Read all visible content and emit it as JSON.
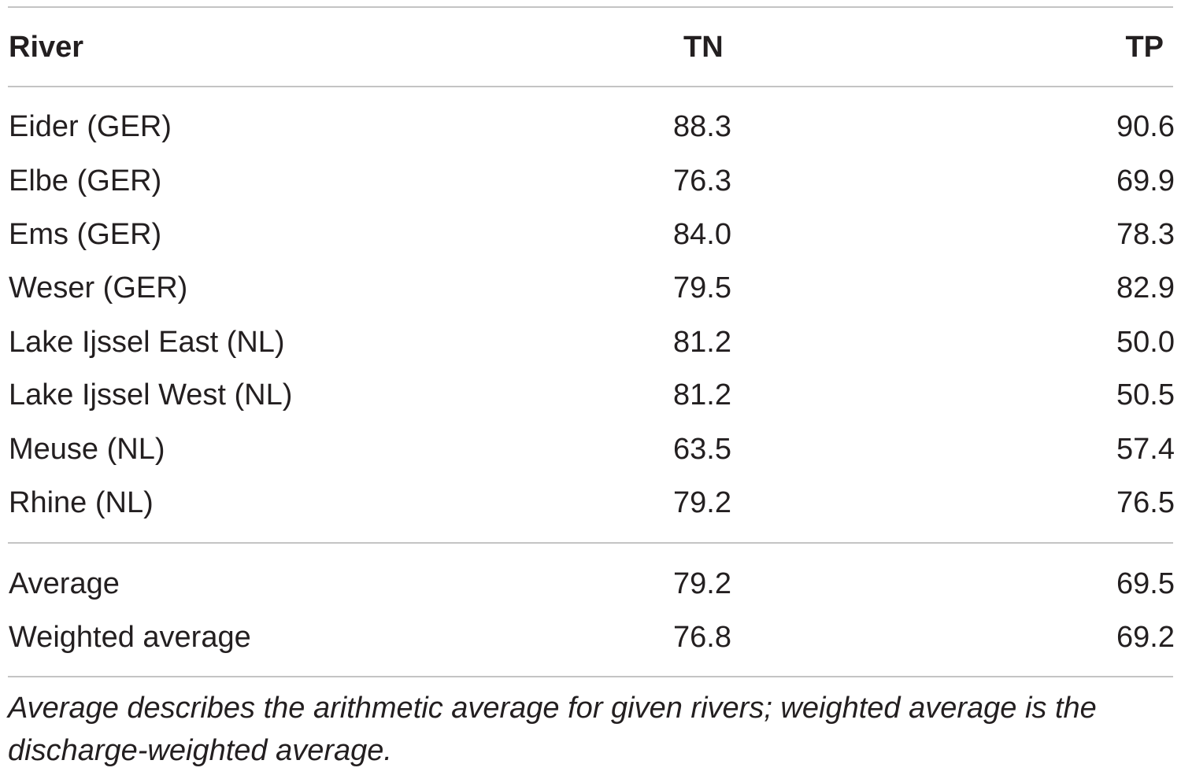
{
  "table": {
    "headers": {
      "river": "River",
      "tn": "TN",
      "tp": "TP"
    },
    "rows": [
      {
        "river": "Eider (GER)",
        "tn": "88.3",
        "tp": "90.6"
      },
      {
        "river": "Elbe (GER)",
        "tn": "76.3",
        "tp": "69.9"
      },
      {
        "river": "Ems (GER)",
        "tn": "84.0",
        "tp": "78.3"
      },
      {
        "river": "Weser (GER)",
        "tn": "79.5",
        "tp": "82.9"
      },
      {
        "river": "Lake Ijssel East (NL)",
        "tn": "81.2",
        "tp": "50.0"
      },
      {
        "river": "Lake Ijssel West (NL)",
        "tn": "81.2",
        "tp": "50.5"
      },
      {
        "river": "Meuse (NL)",
        "tn": "63.5",
        "tp": "57.4"
      },
      {
        "river": "Rhine (NL)",
        "tn": "79.2",
        "tp": "76.5"
      }
    ],
    "summary": [
      {
        "river": "Average",
        "tn": "79.2",
        "tp": "69.5"
      },
      {
        "river": "Weighted average",
        "tn": "76.8",
        "tp": "69.2"
      }
    ]
  },
  "footnote": "Average describes the arithmetic average for given rivers; weighted average is the discharge-weighted average."
}
